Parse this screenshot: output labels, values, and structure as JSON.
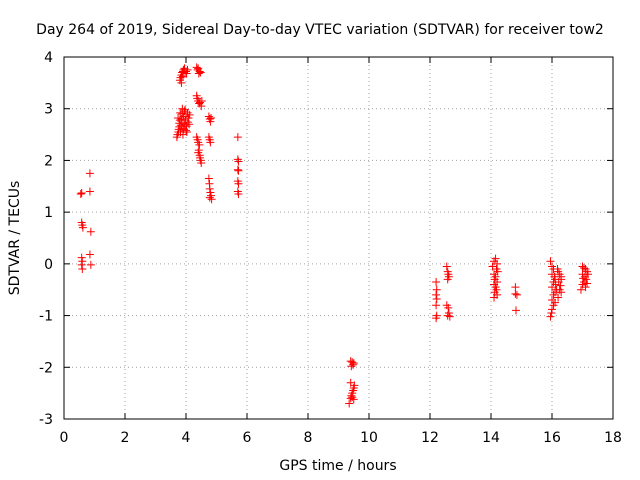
{
  "chart_data": {
    "type": "scatter",
    "title": "Day 264 of 2019, Sidereal Day-to-day VTEC variation (SDTVAR) for receiver tow2",
    "xlabel": "GPS time / hours",
    "ylabel": "SDTVAR / TECUs",
    "xlim": [
      0,
      18
    ],
    "ylim": [
      -3,
      4
    ],
    "xticks": [
      0,
      2,
      4,
      6,
      8,
      10,
      12,
      14,
      16,
      18
    ],
    "yticks": [
      -3,
      -2,
      -1,
      0,
      1,
      2,
      3,
      4
    ],
    "grid": true,
    "marker": "+",
    "color": "#ff0000",
    "series": [
      {
        "name": "SDTVAR",
        "points": [
          [
            0.55,
            1.35
          ],
          [
            0.58,
            1.37
          ],
          [
            0.85,
            1.75
          ],
          [
            0.85,
            1.4
          ],
          [
            0.58,
            0.8
          ],
          [
            0.6,
            0.75
          ],
          [
            0.62,
            0.7
          ],
          [
            0.88,
            0.62
          ],
          [
            0.58,
            0.12
          ],
          [
            0.6,
            0.05
          ],
          [
            0.58,
            -0.02
          ],
          [
            0.6,
            -0.1
          ],
          [
            0.85,
            0.18
          ],
          [
            0.88,
            -0.02
          ],
          [
            3.8,
            3.55
          ],
          [
            3.82,
            3.6
          ],
          [
            3.85,
            3.65
          ],
          [
            3.87,
            3.7
          ],
          [
            3.9,
            3.72
          ],
          [
            3.92,
            3.75
          ],
          [
            3.95,
            3.78
          ],
          [
            4.0,
            3.72
          ],
          [
            4.05,
            3.75
          ],
          [
            3.85,
            3.5
          ],
          [
            3.9,
            3.62
          ],
          [
            4.02,
            3.68
          ],
          [
            4.35,
            3.8
          ],
          [
            4.38,
            3.75
          ],
          [
            4.4,
            3.78
          ],
          [
            4.45,
            3.72
          ],
          [
            4.48,
            3.7
          ],
          [
            4.42,
            3.68
          ],
          [
            3.7,
            2.45
          ],
          [
            3.72,
            2.5
          ],
          [
            3.75,
            2.55
          ],
          [
            3.76,
            2.6
          ],
          [
            3.78,
            2.65
          ],
          [
            3.78,
            2.72
          ],
          [
            3.8,
            2.78
          ],
          [
            3.82,
            2.55
          ],
          [
            3.83,
            2.68
          ],
          [
            3.85,
            2.8
          ],
          [
            3.86,
            2.62
          ],
          [
            3.88,
            2.9
          ],
          [
            3.9,
            2.5
          ],
          [
            3.9,
            2.72
          ],
          [
            3.92,
            2.85
          ],
          [
            3.93,
            2.6
          ],
          [
            3.95,
            2.95
          ],
          [
            3.96,
            2.7
          ],
          [
            3.98,
            2.78
          ],
          [
            4.0,
            2.85
          ],
          [
            4.0,
            2.58
          ],
          [
            4.02,
            2.66
          ],
          [
            4.05,
            2.92
          ],
          [
            4.06,
            2.74
          ],
          [
            4.08,
            2.82
          ],
          [
            4.1,
            2.7
          ],
          [
            4.12,
            2.88
          ],
          [
            3.74,
            2.82
          ],
          [
            3.81,
            2.92
          ],
          [
            3.88,
            3.0
          ],
          [
            3.97,
            2.98
          ],
          [
            4.03,
            2.55
          ],
          [
            4.35,
            3.25
          ],
          [
            4.37,
            3.2
          ],
          [
            4.4,
            3.15
          ],
          [
            4.43,
            3.1
          ],
          [
            4.46,
            3.12
          ],
          [
            4.5,
            3.05
          ],
          [
            4.52,
            3.15
          ],
          [
            4.35,
            2.45
          ],
          [
            4.38,
            2.4
          ],
          [
            4.4,
            2.35
          ],
          [
            4.42,
            2.2
          ],
          [
            4.45,
            2.1
          ],
          [
            4.46,
            2.05
          ],
          [
            4.48,
            2.0
          ],
          [
            4.5,
            1.95
          ],
          [
            4.4,
            2.15
          ],
          [
            4.44,
            2.3
          ],
          [
            4.75,
            2.85
          ],
          [
            4.78,
            2.8
          ],
          [
            4.8,
            2.75
          ],
          [
            4.82,
            2.82
          ],
          [
            4.75,
            2.45
          ],
          [
            4.78,
            2.4
          ],
          [
            4.8,
            2.35
          ],
          [
            4.75,
            1.65
          ],
          [
            4.77,
            1.55
          ],
          [
            4.78,
            1.45
          ],
          [
            4.8,
            1.38
          ],
          [
            4.82,
            1.32
          ],
          [
            4.78,
            1.28
          ],
          [
            4.84,
            1.25
          ],
          [
            5.7,
            2.45
          ],
          [
            5.7,
            2.02
          ],
          [
            5.72,
            1.98
          ],
          [
            5.7,
            1.82
          ],
          [
            5.72,
            1.8
          ],
          [
            5.7,
            1.6
          ],
          [
            5.72,
            1.55
          ],
          [
            5.7,
            1.4
          ],
          [
            5.72,
            1.35
          ],
          [
            9.4,
            -1.88
          ],
          [
            9.45,
            -1.9
          ],
          [
            9.5,
            -1.92
          ],
          [
            9.42,
            -1.98
          ],
          [
            9.48,
            -1.95
          ],
          [
            9.35,
            -2.7
          ],
          [
            9.4,
            -2.6
          ],
          [
            9.42,
            -2.55
          ],
          [
            9.45,
            -2.5
          ],
          [
            9.48,
            -2.45
          ],
          [
            9.5,
            -2.4
          ],
          [
            9.52,
            -2.35
          ],
          [
            9.4,
            -2.3
          ],
          [
            9.45,
            -2.58
          ],
          [
            9.5,
            -2.62
          ],
          [
            12.2,
            -0.35
          ],
          [
            12.22,
            -0.5
          ],
          [
            12.2,
            -0.6
          ],
          [
            12.22,
            -0.68
          ],
          [
            12.2,
            -0.8
          ],
          [
            12.22,
            -1.0
          ],
          [
            12.2,
            -1.05
          ],
          [
            12.55,
            -0.05
          ],
          [
            12.58,
            -0.15
          ],
          [
            12.6,
            -0.2
          ],
          [
            12.62,
            -0.25
          ],
          [
            12.58,
            -0.3
          ],
          [
            12.55,
            -0.8
          ],
          [
            12.6,
            -0.85
          ],
          [
            12.62,
            -0.95
          ],
          [
            12.58,
            -1.0
          ],
          [
            12.65,
            -1.02
          ],
          [
            14.1,
            0.05
          ],
          [
            14.15,
            0.1
          ],
          [
            14.2,
            0.0
          ],
          [
            14.18,
            -0.1
          ],
          [
            14.1,
            -0.2
          ],
          [
            14.15,
            -0.25
          ],
          [
            14.12,
            -0.3
          ],
          [
            14.2,
            -0.35
          ],
          [
            14.1,
            -0.4
          ],
          [
            14.15,
            -0.45
          ],
          [
            14.18,
            -0.5
          ],
          [
            14.12,
            -0.55
          ],
          [
            14.2,
            -0.6
          ],
          [
            14.1,
            -0.65
          ],
          [
            14.22,
            -0.15
          ],
          [
            14.05,
            -0.05
          ],
          [
            14.8,
            -0.45
          ],
          [
            14.8,
            -0.58
          ],
          [
            14.85,
            -0.6
          ],
          [
            14.82,
            -0.9
          ],
          [
            15.95,
            0.05
          ],
          [
            16.0,
            -0.05
          ],
          [
            16.05,
            -0.1
          ],
          [
            16.0,
            -0.2
          ],
          [
            16.08,
            -0.25
          ],
          [
            16.1,
            -0.3
          ],
          [
            16.05,
            -0.35
          ],
          [
            16.12,
            -0.4
          ],
          [
            16.0,
            -0.45
          ],
          [
            16.15,
            -0.5
          ],
          [
            16.1,
            -0.55
          ],
          [
            16.05,
            -0.6
          ],
          [
            16.2,
            -0.65
          ],
          [
            16.0,
            -0.7
          ],
          [
            16.1,
            -0.75
          ],
          [
            16.05,
            -0.8
          ],
          [
            16.0,
            -0.88
          ],
          [
            15.98,
            -0.95
          ],
          [
            15.95,
            -1.02
          ],
          [
            16.2,
            -0.15
          ],
          [
            16.25,
            -0.2
          ],
          [
            16.3,
            -0.25
          ],
          [
            16.22,
            -0.35
          ],
          [
            16.28,
            -0.42
          ],
          [
            16.25,
            -0.5
          ],
          [
            16.3,
            -0.55
          ],
          [
            16.18,
            -0.1
          ],
          [
            16.3,
            -0.3
          ],
          [
            17.0,
            -0.05
          ],
          [
            17.05,
            -0.08
          ],
          [
            17.1,
            -0.1
          ],
          [
            17.15,
            -0.15
          ],
          [
            17.0,
            -0.2
          ],
          [
            17.08,
            -0.25
          ],
          [
            17.12,
            -0.3
          ],
          [
            17.05,
            -0.35
          ],
          [
            17.0,
            -0.4
          ],
          [
            17.1,
            -0.45
          ],
          [
            16.95,
            -0.5
          ],
          [
            17.18,
            -0.2
          ],
          [
            17.15,
            -0.38
          ],
          [
            17.02,
            -0.28
          ]
        ]
      }
    ]
  }
}
